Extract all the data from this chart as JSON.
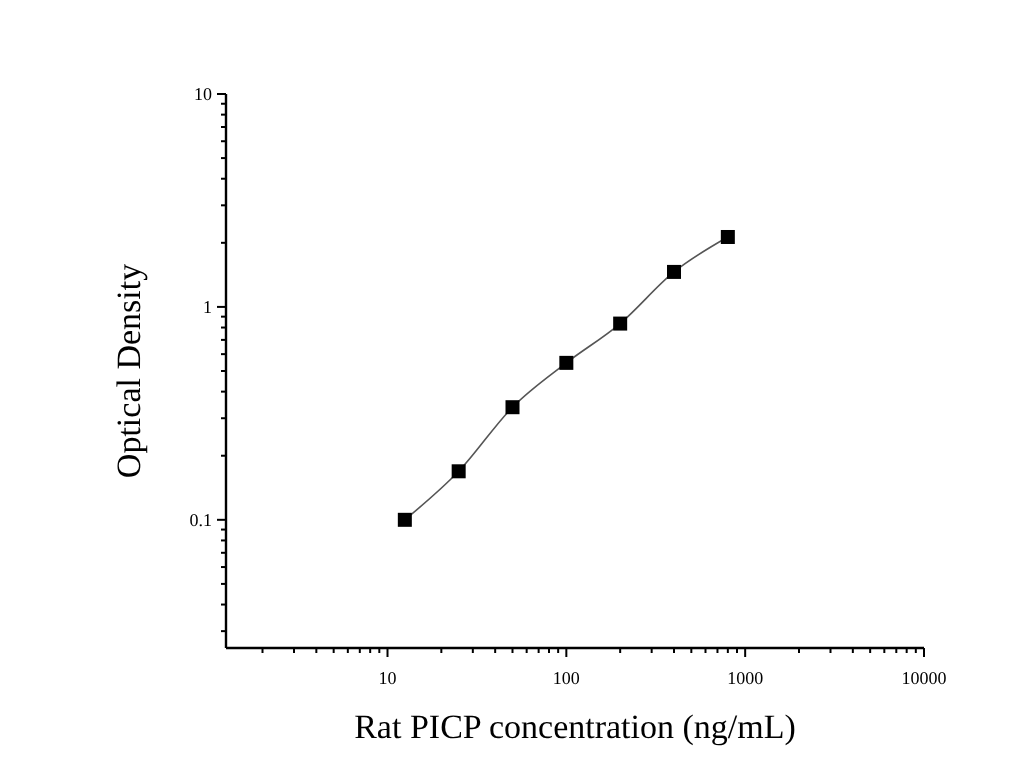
{
  "chart_data": {
    "type": "line",
    "xlabel": "Rat PICP concentration (ng/mL)",
    "ylabel": "Optical Density",
    "log": "xy",
    "marker": "square",
    "line_style": "solid",
    "grid": false,
    "xlim": [
      1.25,
      10000
    ],
    "ylim": [
      0.025,
      10
    ],
    "xticks": [
      {
        "value": 2,
        "label": null
      },
      {
        "value": 3,
        "label": null
      },
      {
        "value": 4,
        "label": null
      },
      {
        "value": 5,
        "label": null
      },
      {
        "value": 6,
        "label": null
      },
      {
        "value": 7,
        "label": null
      },
      {
        "value": 8,
        "label": null
      },
      {
        "value": 9,
        "label": null
      },
      10,
      {
        "value": 20,
        "label": null
      },
      {
        "value": 30,
        "label": null
      },
      {
        "value": 40,
        "label": null
      },
      {
        "value": 50,
        "label": null
      },
      {
        "value": 60,
        "label": null
      },
      {
        "value": 70,
        "label": null
      },
      {
        "value": 80,
        "label": null
      },
      {
        "value": 90,
        "label": null
      },
      100,
      {
        "value": 200,
        "label": null
      },
      {
        "value": 300,
        "label": null
      },
      {
        "value": 400,
        "label": null
      },
      {
        "value": 500,
        "label": null
      },
      {
        "value": 600,
        "label": null
      },
      {
        "value": 700,
        "label": null
      },
      {
        "value": 800,
        "label": null
      },
      {
        "value": 900,
        "label": null
      },
      1000,
      {
        "value": 2000,
        "label": null
      },
      {
        "value": 3000,
        "label": null
      },
      {
        "value": 4000,
        "label": null
      },
      {
        "value": 5000,
        "label": null
      },
      {
        "value": 6000,
        "label": null
      },
      {
        "value": 7000,
        "label": null
      },
      {
        "value": 8000,
        "label": null
      },
      {
        "value": 9000,
        "label": null
      },
      10000
    ],
    "yticks": [
      {
        "value": 0.03,
        "label": null
      },
      {
        "value": 0.04,
        "label": null
      },
      {
        "value": 0.05,
        "label": null
      },
      {
        "value": 0.06,
        "label": null
      },
      {
        "value": 0.07,
        "label": null
      },
      {
        "value": 0.08,
        "label": null
      },
      {
        "value": 0.09,
        "label": null
      },
      0.1,
      {
        "value": 0.2,
        "label": null
      },
      {
        "value": 0.3,
        "label": null
      },
      {
        "value": 0.4,
        "label": null
      },
      {
        "value": 0.5,
        "label": null
      },
      {
        "value": 0.6,
        "label": null
      },
      {
        "value": 0.7,
        "label": null
      },
      {
        "value": 0.8,
        "label": null
      },
      {
        "value": 0.9,
        "label": null
      },
      1,
      {
        "value": 2,
        "label": null
      },
      {
        "value": 3,
        "label": null
      },
      {
        "value": 4,
        "label": null
      },
      {
        "value": 5,
        "label": null
      },
      {
        "value": 6,
        "label": null
      },
      {
        "value": 7,
        "label": null
      },
      {
        "value": 8,
        "label": null
      },
      {
        "value": 9,
        "label": null
      },
      10
    ],
    "x": [
      12.5,
      25,
      50,
      100,
      200,
      400,
      800
    ],
    "series": [
      {
        "color": "#000000",
        "values": [
          0.1,
          0.169,
          0.338,
          0.546,
          0.835,
          1.46,
          2.13
        ]
      }
    ]
  }
}
